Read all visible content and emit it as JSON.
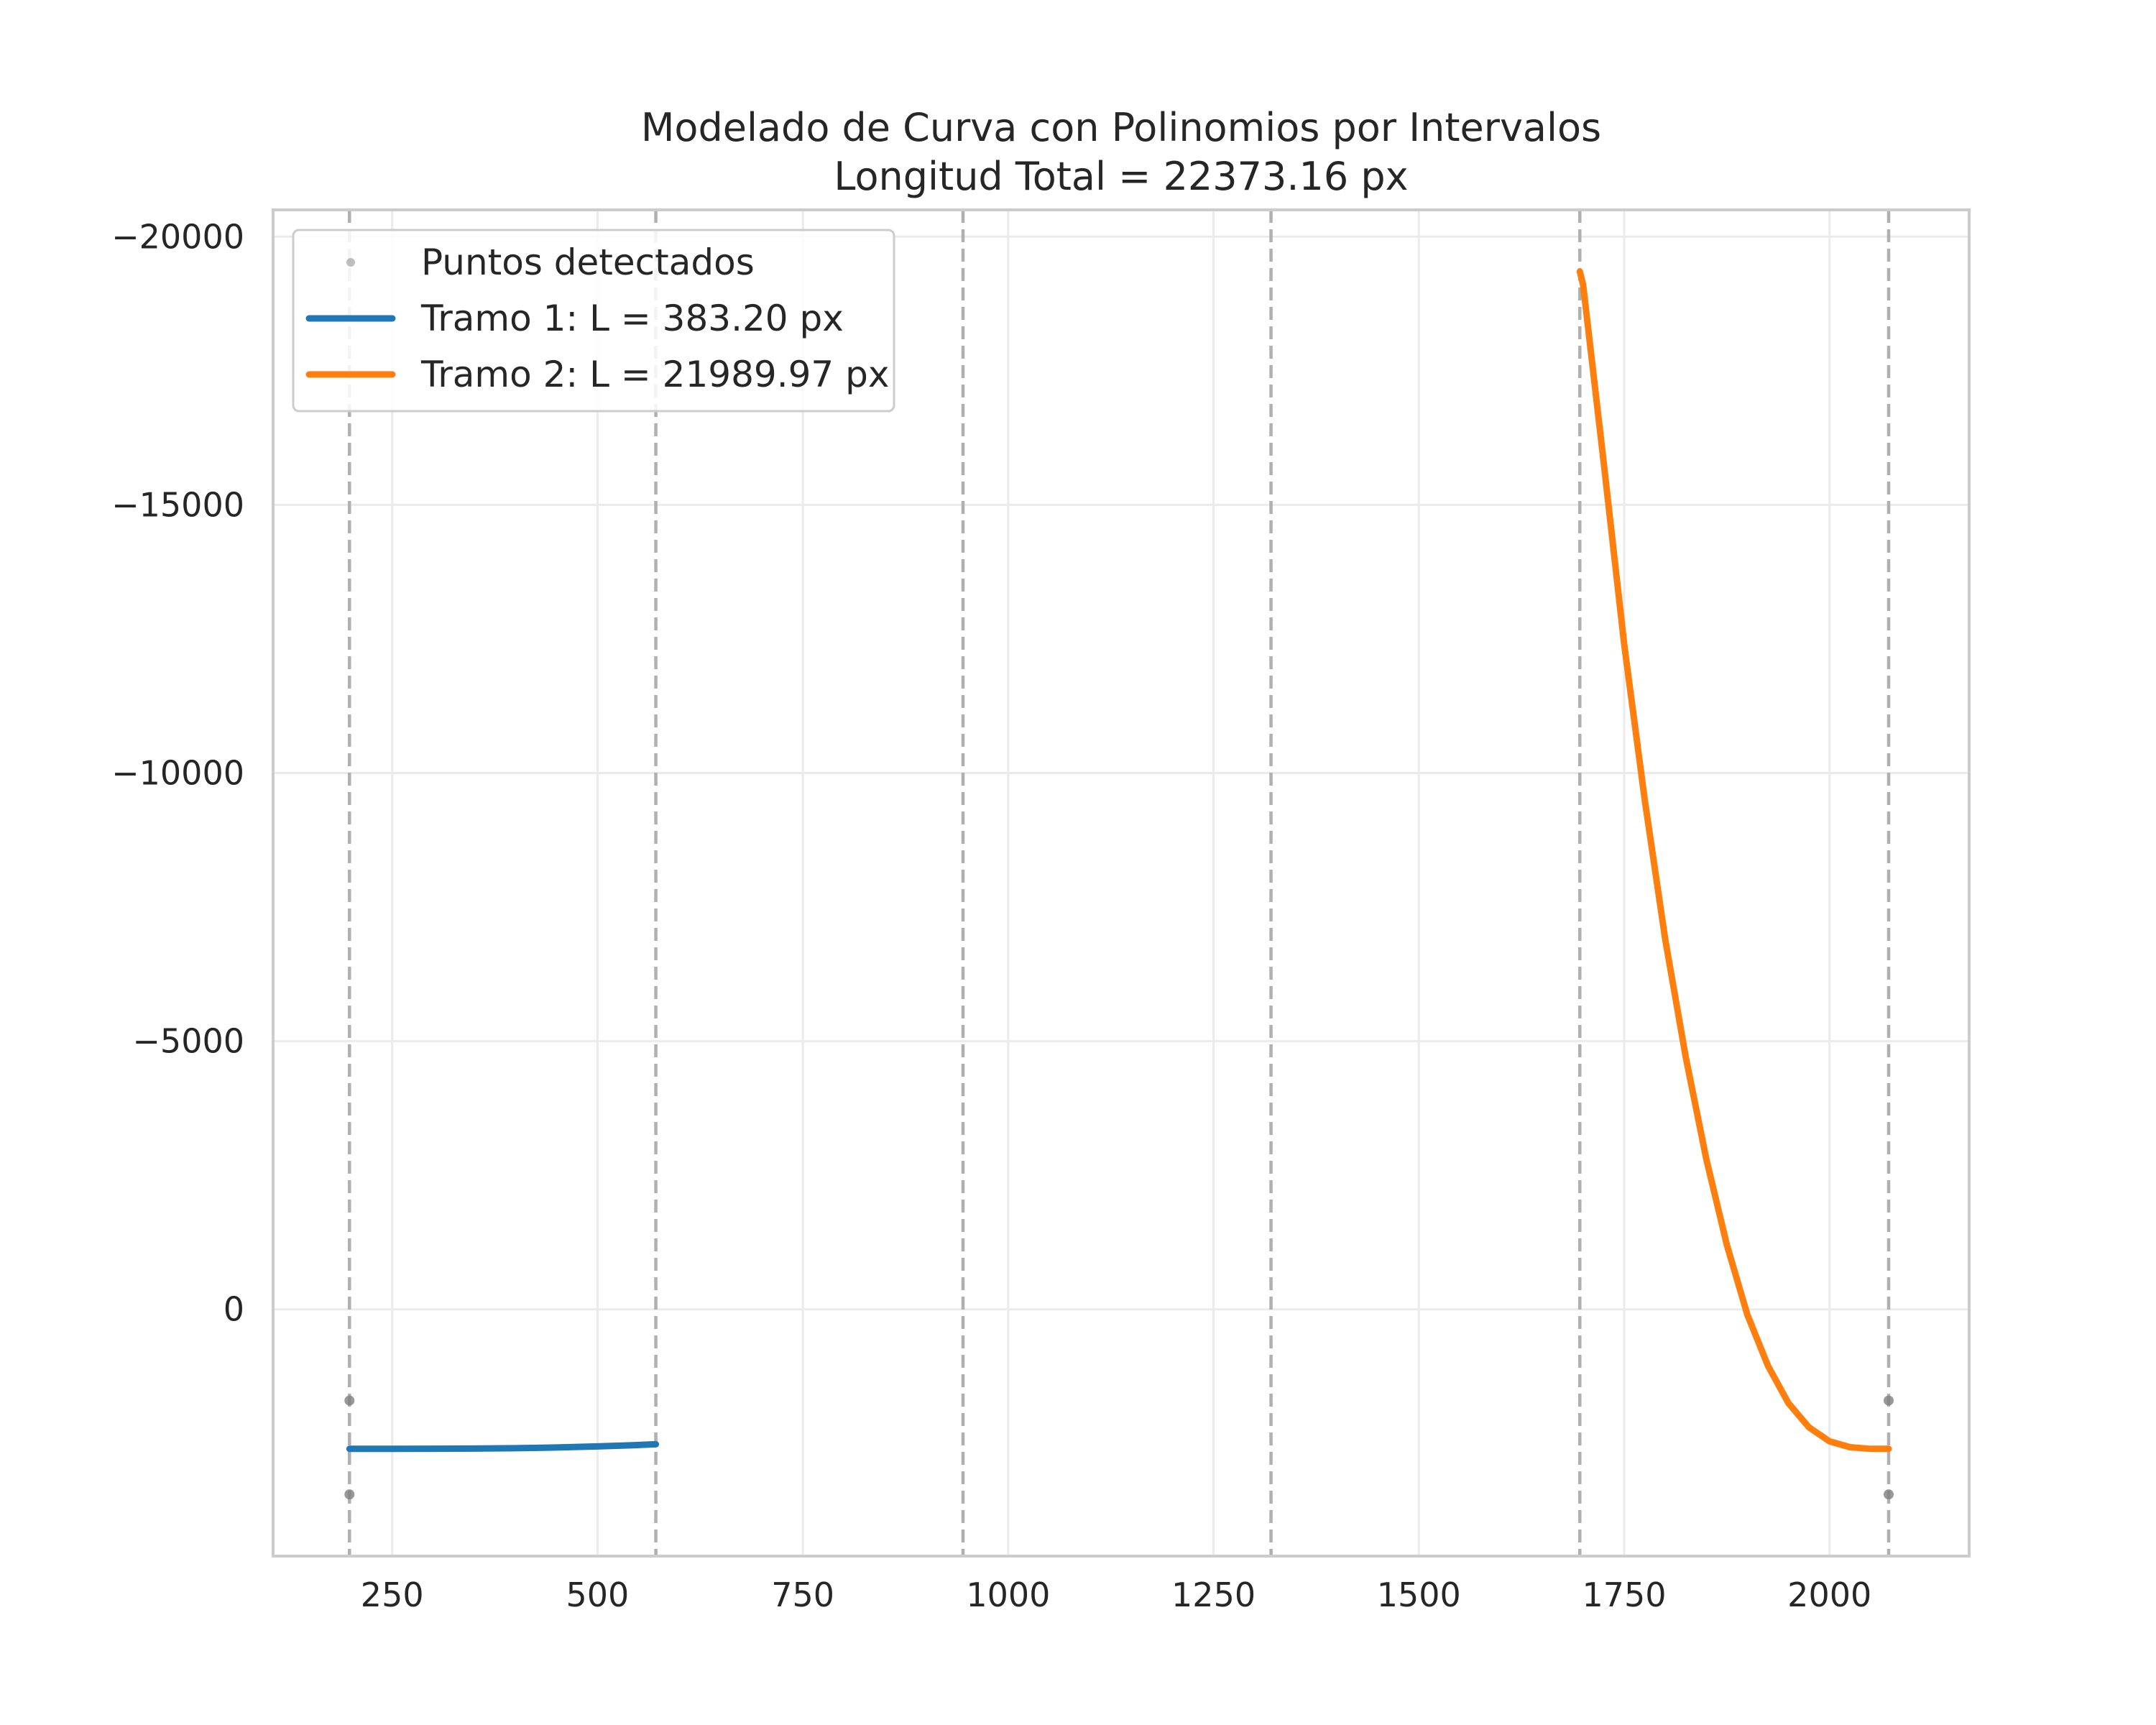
{
  "chart_data": {
    "type": "line",
    "title": "Modelado de Curva con Polinomios por Intervalos",
    "subtitle": "Longitud Total = 22373.16 px",
    "xlabel": "",
    "ylabel": "",
    "xlim": [
      105,
      2170
    ],
    "ylim": [
      4600,
      -20500
    ],
    "y_inverted": true,
    "grid": true,
    "legend_placement": "top-left",
    "x_ticks": [
      250,
      500,
      750,
      1000,
      1250,
      1500,
      1750,
      2000
    ],
    "x_tick_labels": [
      "250",
      "500",
      "750",
      "1000",
      "1250",
      "1500",
      "1750",
      "2000"
    ],
    "y_ticks": [
      -20000,
      -15000,
      -10000,
      -5000,
      0
    ],
    "y_tick_labels": [
      "−20000",
      "−15000",
      "−10000",
      "−5000",
      "0"
    ],
    "boundaries": [
      198,
      571,
      945,
      1320,
      1696,
      2072
    ],
    "detected_points": [
      {
        "x": 198,
        "y": 1700
      },
      {
        "x": 198,
        "y": 3450
      },
      {
        "x": 2072,
        "y": 1700
      },
      {
        "x": 2072,
        "y": 3450
      }
    ],
    "legend": [
      "Puntos detectados",
      "Tramo 1: L = 383.20 px",
      "Tramo 2: L = 21989.97 px"
    ],
    "series": [
      {
        "name": "Tramo 1: L = 383.20 px",
        "color": "#1f77b4",
        "x": [
          198,
          250,
          300,
          350,
          400,
          450,
          500,
          540,
          571
        ],
        "y": [
          2600,
          2600,
          2598,
          2595,
          2588,
          2575,
          2555,
          2535,
          2515
        ]
      },
      {
        "name": "Tramo 2: L = 21989.97 px",
        "color": "#ff7f0e",
        "x": [
          1696,
          1700,
          1725,
          1750,
          1775,
          1800,
          1825,
          1850,
          1875,
          1900,
          1925,
          1950,
          1975,
          2000,
          2025,
          2050,
          2072
        ],
        "y": [
          -19350,
          -19100,
          -15800,
          -12400,
          -9500,
          -6900,
          -4700,
          -2800,
          -1200,
          100,
          1050,
          1750,
          2200,
          2460,
          2570,
          2600,
          2600
        ]
      }
    ],
    "points_color": "#808080",
    "boundary_color": "#b0b0b0"
  }
}
